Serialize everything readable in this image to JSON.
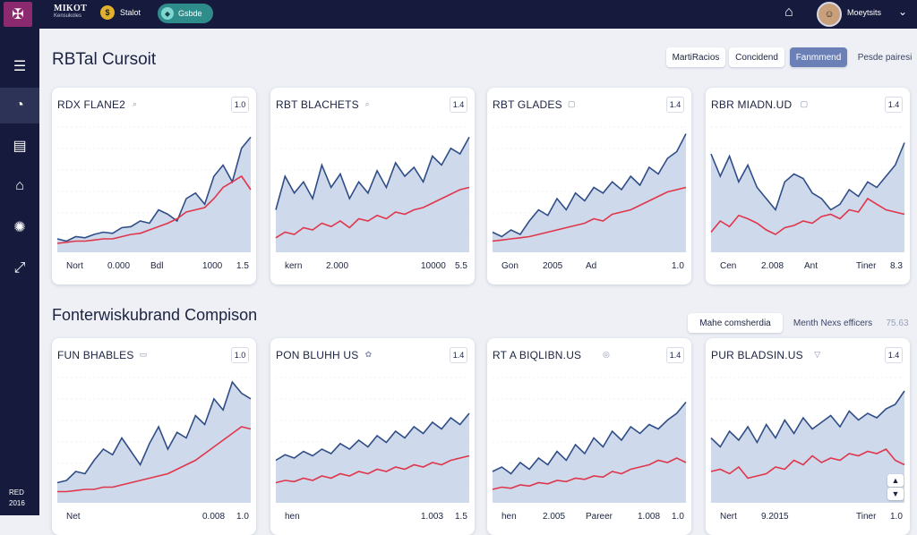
{
  "topbar": {
    "brand": "MIKOT",
    "brand_sub": "Kensukoles",
    "item1_label": "Stalot",
    "pill_label": "Gsbde",
    "user_name": "Moeytsits"
  },
  "sidebar": {
    "items": [
      {
        "icon": "menu-icon"
      },
      {
        "icon": "gauge-icon"
      },
      {
        "icon": "document-icon"
      },
      {
        "icon": "store-icon"
      },
      {
        "icon": "lightbulb-icon"
      },
      {
        "icon": "link-icon"
      }
    ],
    "footer_line1": "RED",
    "footer_line2": "2016"
  },
  "section1": {
    "title": "RBTal Cursoit",
    "btn1": "MartiRacios",
    "btn2": "Concidend",
    "btn3": "Fanmmend",
    "btn4": "Pesde pairesi"
  },
  "section2": {
    "title": "Fonterwiskubrand Compison",
    "btn1": "Mahe comsherdia",
    "btn2": "Menth Nexs efficers",
    "corner": "75.63"
  },
  "cards": [
    {
      "title": "RDX FLANE2",
      "badge": "1.0",
      "foot": [
        "Nort",
        "0.000",
        "Bdl",
        "1000",
        "1.5"
      ]
    },
    {
      "title": "RBT BLACHETS",
      "badge": "1.4",
      "foot": [
        "kern",
        "2.000",
        "",
        "10000",
        "5.5"
      ]
    },
    {
      "title": "RBT GLADES",
      "badge": "1.4",
      "foot": [
        "Gon",
        "2005",
        "Ad",
        "",
        "1.0"
      ]
    },
    {
      "title": "RBR MIADN.UD",
      "badge": "1.4",
      "foot": [
        "Cen",
        "2.008",
        "Ant",
        "Tiner",
        "8.3"
      ]
    },
    {
      "title": "FUN BHABLES",
      "badge": "1.0",
      "foot": [
        "Net",
        "",
        "",
        "0.008",
        "1.0"
      ]
    },
    {
      "title": "PON BLUHH US",
      "badge": "1.4",
      "foot": [
        "hen",
        "",
        "",
        "1.003",
        "1.5"
      ]
    },
    {
      "title": "RT A BIQLIBN.US",
      "badge": "1.4",
      "foot": [
        "hen",
        "2.005",
        "Pareer",
        "1.008",
        "1.0"
      ]
    },
    {
      "title": "PUR BLADSIN.US",
      "badge": "1.4",
      "foot": [
        "Nert",
        "9.2015",
        "",
        "Tiner",
        "1.0"
      ]
    }
  ],
  "colors": {
    "navy": "#161b3d",
    "area_line": "#2f4d86",
    "area_fill": "#c6d2e8",
    "red_line": "#e0364b"
  }
}
